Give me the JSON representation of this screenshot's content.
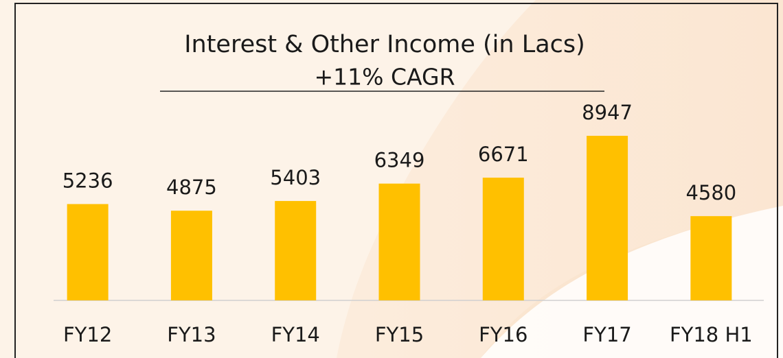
{
  "chart_data": {
    "type": "bar",
    "title": "Interest & Other Income (in Lacs)",
    "subtitle": "+11% CAGR",
    "categories": [
      "FY12",
      "FY13",
      "FY14",
      "FY15",
      "FY16",
      "FY17",
      "FY18 H1"
    ],
    "values": [
      5236,
      4875,
      5403,
      6349,
      6671,
      8947,
      4580
    ],
    "color": "#ffc000"
  }
}
